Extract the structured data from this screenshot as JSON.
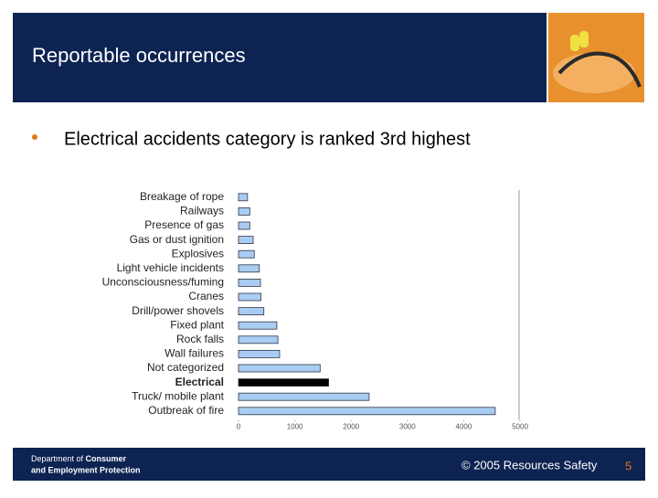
{
  "header": {
    "title": "Reportable occurrences"
  },
  "bullet": {
    "text": "Electrical accidents category is ranked 3rd highest"
  },
  "chart_data": {
    "type": "hbar",
    "categories": [
      "Breakage of rope",
      "Railways",
      "Presence of gas",
      "Gas or dust ignition",
      "Explosives",
      "Light vehicle incidents",
      "Unconsciousness/fuming",
      "Cranes",
      "Drill/power shovels",
      "Fixed plant",
      "Rock falls",
      "Wall failures",
      "Not categorized",
      "Electrical",
      "Truck/ mobile plant",
      "Outbreak of fire"
    ],
    "values": [
      160,
      200,
      200,
      260,
      280,
      370,
      390,
      400,
      450,
      680,
      700,
      730,
      1450,
      1600,
      2320,
      4560
    ],
    "colors": [
      "#a9cdf2",
      "#a9cdf2",
      "#a9cdf2",
      "#a9cdf2",
      "#a9cdf2",
      "#a9cdf2",
      "#a9cdf2",
      "#a9cdf2",
      "#a9cdf2",
      "#a9cdf2",
      "#a9cdf2",
      "#a9cdf2",
      "#a9cdf2",
      "#000000",
      "#a9cdf2",
      "#a9cdf2"
    ],
    "xlim": [
      0,
      5000
    ],
    "xticks": [
      0,
      1000,
      2000,
      3000,
      4000,
      5000
    ]
  },
  "footer": {
    "department": [
      "Department of ",
      "Consumer",
      "and Employment Protection"
    ],
    "copyright": "© 2005 Resources Safety",
    "page_number": "5"
  }
}
